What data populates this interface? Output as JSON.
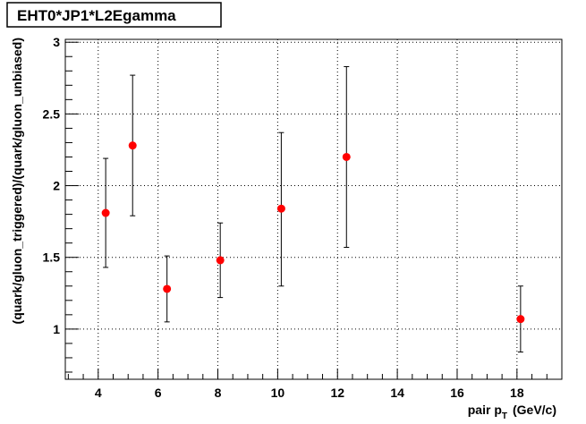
{
  "chart_data": {
    "type": "scatter",
    "title": "EHT0*JP1*L2Egamma",
    "xlabel_main": "pair p",
    "xlabel_sub": "T",
    "xlabel_unit": "(GeV/c)",
    "ylabel": "(quark/gluon_triggered)/(quark/gluon_unbiased)",
    "xlim": [
      2.9,
      19.5
    ],
    "ylim": [
      0.65,
      3.02
    ],
    "x_ticks": [
      4,
      6,
      8,
      10,
      12,
      14,
      16,
      18
    ],
    "x_tick_labels": [
      "4",
      "6",
      "8",
      "10",
      "12",
      "14",
      "16",
      "18"
    ],
    "y_ticks": [
      1,
      1.5,
      2,
      2.5,
      3
    ],
    "y_tick_labels": [
      "1",
      "1.5",
      "2",
      "2.5",
      "3"
    ],
    "grid": true,
    "marker_color": "#ff0000",
    "series": [
      {
        "x": [
          4.25,
          5.15,
          6.3,
          8.08,
          10.12,
          12.3,
          18.12
        ],
        "y": [
          1.81,
          2.28,
          1.28,
          1.48,
          1.84,
          2.2,
          1.07
        ],
        "err_low": [
          0.38,
          0.49,
          0.23,
          0.26,
          0.54,
          0.63,
          0.23
        ],
        "err_high": [
          0.38,
          0.49,
          0.23,
          0.26,
          0.53,
          0.63,
          0.23
        ]
      }
    ]
  }
}
